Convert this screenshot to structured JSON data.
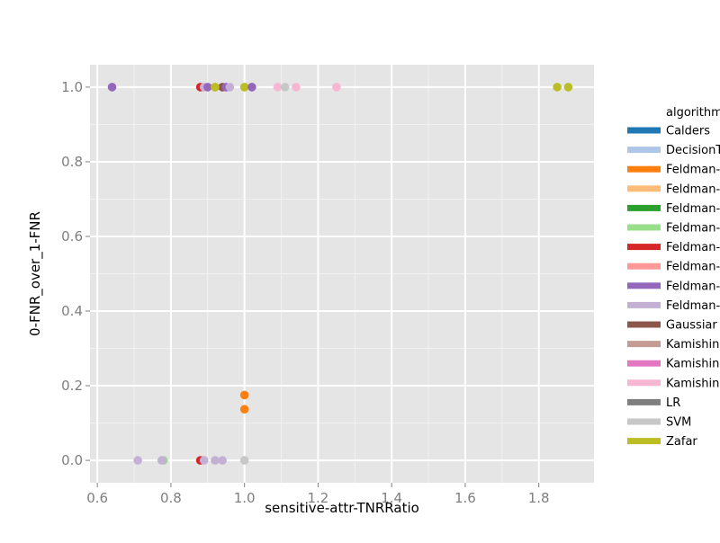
{
  "chart_data": {
    "type": "scatter",
    "xlabel": "sensitive-attr-TNRRatio",
    "ylabel": "0-FNR_over_1-FNR",
    "xlim": [
      0.58,
      1.95
    ],
    "ylim": [
      -0.06,
      1.06
    ],
    "x_ticks": [
      0.6,
      0.8,
      1.0,
      1.2,
      1.4,
      1.6,
      1.8
    ],
    "y_ticks": [
      0.0,
      0.2,
      0.4,
      0.6,
      0.8,
      1.0
    ],
    "x_tick_labels": [
      "0.6",
      "0.8",
      "1.0",
      "1.2",
      "1.4",
      "1.6",
      "1.8"
    ],
    "y_tick_labels": [
      "0.0",
      "0.2",
      "0.4",
      "0.6",
      "0.8",
      "1.0"
    ],
    "grid": true,
    "panel_background": "#e5e5e5",
    "grid_color": "#ffffff",
    "legend": {
      "title": "algorithm",
      "placement": "right",
      "entries": [
        {
          "label": "Calders",
          "color": "#1f77b4"
        },
        {
          "label": "DecisionT",
          "color": "#aec7e8"
        },
        {
          "label": "Feldman-",
          "color": "#ff7f0e"
        },
        {
          "label": "Feldman-",
          "color": "#ffbb78"
        },
        {
          "label": "Feldman-",
          "color": "#2ca02c"
        },
        {
          "label": "Feldman-",
          "color": "#98df8a"
        },
        {
          "label": "Feldman-",
          "color": "#d62728"
        },
        {
          "label": "Feldman-",
          "color": "#ff9896"
        },
        {
          "label": "Feldman-",
          "color": "#9467bd"
        },
        {
          "label": "Feldman-",
          "color": "#c5b0d5"
        },
        {
          "label": "Gaussiar",
          "color": "#8c564b"
        },
        {
          "label": "Kamishin",
          "color": "#c49c94"
        },
        {
          "label": "Kamishin",
          "color": "#e377c2"
        },
        {
          "label": "Kamishin",
          "color": "#f7b6d2"
        },
        {
          "label": "LR",
          "color": "#7f7f7f"
        },
        {
          "label": "SVM",
          "color": "#c7c7c7"
        },
        {
          "label": "Zafar",
          "color": "#bcbd22"
        }
      ]
    },
    "points": [
      {
        "x": 0.64,
        "y": 1.0,
        "color": "#9467bd"
      },
      {
        "x": 0.88,
        "y": 1.0,
        "color": "#d62728"
      },
      {
        "x": 0.89,
        "y": 1.0,
        "color": "#c5b0d5"
      },
      {
        "x": 0.9,
        "y": 1.0,
        "color": "#9467bd"
      },
      {
        "x": 0.92,
        "y": 1.0,
        "color": "#ff9896"
      },
      {
        "x": 0.94,
        "y": 1.0,
        "color": "#8c564b"
      },
      {
        "x": 0.95,
        "y": 1.0,
        "color": "#9467bd"
      },
      {
        "x": 0.96,
        "y": 1.0,
        "color": "#c5b0d5"
      },
      {
        "x": 0.92,
        "y": 1.0,
        "color": "#bcbd22"
      },
      {
        "x": 1.0,
        "y": 1.0,
        "color": "#c7c7c7"
      },
      {
        "x": 1.0,
        "y": 1.0,
        "color": "#bcbd22"
      },
      {
        "x": 1.02,
        "y": 1.0,
        "color": "#c5b0d5"
      },
      {
        "x": 1.02,
        "y": 1.0,
        "color": "#9467bd"
      },
      {
        "x": 1.09,
        "y": 1.0,
        "color": "#f7b6d2"
      },
      {
        "x": 1.11,
        "y": 1.0,
        "color": "#c7c7c7"
      },
      {
        "x": 1.14,
        "y": 1.0,
        "color": "#f7b6d2"
      },
      {
        "x": 1.25,
        "y": 1.0,
        "color": "#f7b6d2"
      },
      {
        "x": 1.85,
        "y": 1.0,
        "color": "#bcbd22"
      },
      {
        "x": 1.88,
        "y": 1.0,
        "color": "#bcbd22"
      },
      {
        "x": 1.0,
        "y": 0.175,
        "color": "#ff7f0e"
      },
      {
        "x": 1.0,
        "y": 0.137,
        "color": "#ff7f0e"
      },
      {
        "x": 0.71,
        "y": 0.0,
        "color": "#c5b0d5"
      },
      {
        "x": 0.78,
        "y": 0.0,
        "color": "#98df8a"
      },
      {
        "x": 0.775,
        "y": 0.0,
        "color": "#c5b0d5"
      },
      {
        "x": 0.88,
        "y": 0.0,
        "color": "#d62728"
      },
      {
        "x": 0.89,
        "y": 0.0,
        "color": "#c5b0d5"
      },
      {
        "x": 0.92,
        "y": 0.0,
        "color": "#c5b0d5"
      },
      {
        "x": 0.94,
        "y": 0.0,
        "color": "#c5b0d5"
      },
      {
        "x": 1.0,
        "y": 0.0,
        "color": "#c7c7c7"
      }
    ]
  }
}
